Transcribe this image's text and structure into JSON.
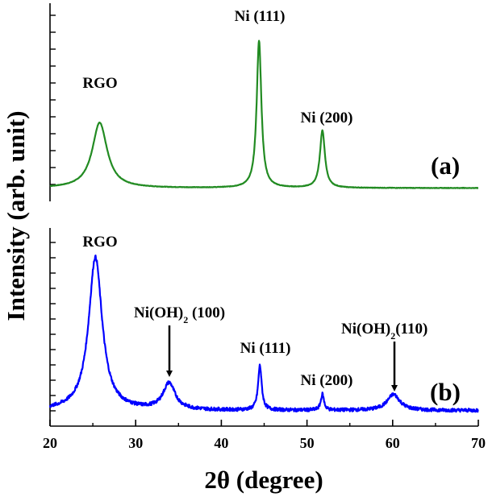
{
  "chart_data": {
    "type": "line",
    "xlabel_main": "2θ",
    "xlabel_rest": " (degree)",
    "ylabel": "Intensity (arb. unit)",
    "xlim": [
      20,
      70
    ],
    "xticks": [
      "20",
      "30",
      "40",
      "50",
      "60",
      "70"
    ],
    "grid": false,
    "panels": [
      {
        "panel_label": "(a)",
        "color": "#228b22",
        "baseline": 0.1,
        "noise": 0.004,
        "peaks": [
          {
            "center": 25.8,
            "height": 0.56,
            "width": 1.05,
            "label": "RGO"
          },
          {
            "center": 44.4,
            "height": 1.26,
            "width": 0.33,
            "label": "Ni (111)"
          },
          {
            "center": 51.8,
            "height": 0.49,
            "width": 0.35,
            "label": "Ni (200)"
          }
        ],
        "annotations": [
          {
            "text": "RGO",
            "x": 25.8
          },
          {
            "text": "Ni (111)",
            "x": 44.4
          },
          {
            "text": "Ni (200)",
            "x": 51.8
          }
        ]
      },
      {
        "panel_label": "(b)",
        "color": "#0000ff",
        "baseline": 0.08,
        "noise": 0.03,
        "peaks": [
          {
            "center": 25.3,
            "height": 1.34,
            "width": 0.95,
            "label": "RGO"
          },
          {
            "center": 33.9,
            "height": 0.23,
            "width": 0.85,
            "label": "Ni(OH)2 (100)"
          },
          {
            "center": 44.5,
            "height": 0.39,
            "width": 0.25,
            "label": "Ni (111)"
          },
          {
            "center": 51.8,
            "height": 0.14,
            "width": 0.22,
            "label": "Ni (200)"
          },
          {
            "center": 60.1,
            "height": 0.14,
            "width": 0.9,
            "label": "Ni(OH)2(110)"
          }
        ],
        "annotations": [
          {
            "text": "RGO",
            "x": 25.3
          },
          {
            "text": "Ni (111)",
            "x": 44.5
          },
          {
            "text": "Ni (200)",
            "x": 51.8
          }
        ],
        "arrows": [
          {
            "text_main": "Ni(OH)",
            "sub": "2",
            "text_rest": " (100)",
            "x": 33.9
          },
          {
            "text_main": "Ni(OH)",
            "sub": "2",
            "text_rest": "(110)",
            "x": 60.1
          }
        ]
      }
    ]
  }
}
